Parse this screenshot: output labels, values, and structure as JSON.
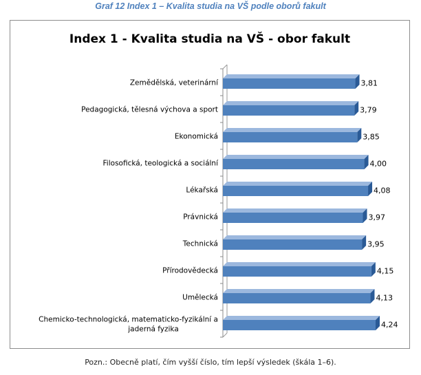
{
  "caption": "Graf 12 Index 1 – Kvalita studia na VŠ podle oborů fakult",
  "note": "Pozn.: Obecně platí, čím vyšší číslo, tím lepší výsledek (škála 1–6).",
  "colors": {
    "bar": "#4f81bd",
    "bar_dark": "#2a5a96",
    "caption": "#4f81bd"
  },
  "chart_data": {
    "type": "bar",
    "orientation": "horizontal",
    "title": "Index 1 - Kvalita studia na VŠ - obor fakult",
    "categories": [
      [
        "Zemědělská, veterinární"
      ],
      [
        "Pedagogická, tělesná výchova a sport"
      ],
      [
        "Ekonomická"
      ],
      [
        "Filosofická, teologická a sociální"
      ],
      [
        "Lékařská"
      ],
      [
        "Právnická"
      ],
      [
        "Technická"
      ],
      [
        "Přírodovědecká"
      ],
      [
        "Umělecká"
      ],
      [
        "Chemicko-technologická, matematicko-fyzikální  a",
        "jaderná fyzika"
      ]
    ],
    "values": [
      3.81,
      3.79,
      3.85,
      4.0,
      4.08,
      3.97,
      3.95,
      4.15,
      4.13,
      4.24
    ],
    "value_labels": [
      "3,81",
      "3,79",
      "3,85",
      "4,00",
      "4,08",
      "3,97",
      "3,95",
      "4,15",
      "4,13",
      "4,24"
    ],
    "xlim": [
      1,
      4.24
    ],
    "grid": false,
    "legend": "none"
  }
}
